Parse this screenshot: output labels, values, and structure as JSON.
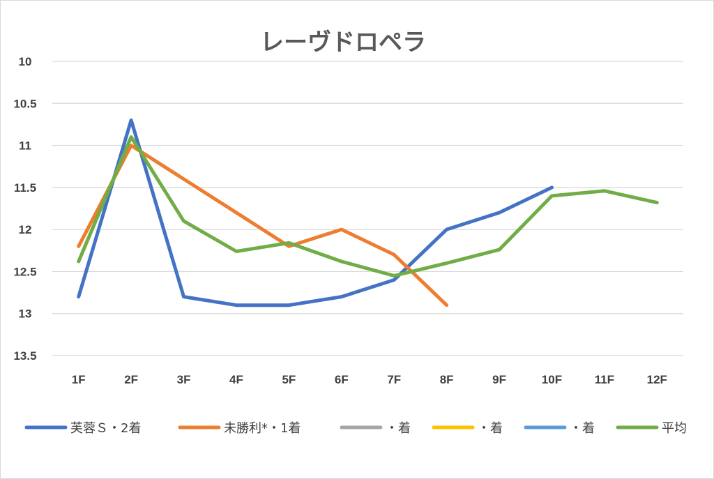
{
  "chart_data": {
    "type": "line",
    "title": "レーヴドロペラ",
    "categories": [
      "1F",
      "2F",
      "3F",
      "4F",
      "5F",
      "6F",
      "7F",
      "8F",
      "9F",
      "10F",
      "11F",
      "12F"
    ],
    "y_ticks": [
      "10",
      "10.5",
      "11",
      "11.5",
      "12",
      "12.5",
      "13",
      "13.5"
    ],
    "ylim": [
      10,
      13.5
    ],
    "y_inverted": true,
    "grid": true,
    "legend_position": "bottom",
    "series": [
      {
        "name": "芙蓉Ｓ・2着",
        "color": "#4472c4",
        "values": [
          12.8,
          10.7,
          12.8,
          12.9,
          12.9,
          12.8,
          12.6,
          12.0,
          11.8,
          11.5,
          null,
          null
        ]
      },
      {
        "name": "未勝利*・1着",
        "color": "#ed7d31",
        "values": [
          12.2,
          11.0,
          11.4,
          11.8,
          12.2,
          12.0,
          12.3,
          12.9,
          null,
          null,
          null,
          null
        ]
      },
      {
        "name": "・着",
        "color": "#a5a5a5",
        "values": [
          null,
          null,
          null,
          null,
          null,
          null,
          null,
          null,
          null,
          null,
          null,
          null
        ]
      },
      {
        "name": "・着",
        "color": "#ffc000",
        "values": [
          null,
          null,
          null,
          null,
          null,
          null,
          null,
          null,
          null,
          null,
          null,
          null
        ]
      },
      {
        "name": "・着",
        "color": "#5b9bd5",
        "values": [
          null,
          null,
          null,
          null,
          null,
          null,
          null,
          null,
          null,
          null,
          null,
          null
        ]
      },
      {
        "name": "平均",
        "color": "#70ad47",
        "values": [
          12.38,
          10.9,
          11.9,
          12.26,
          12.16,
          12.38,
          12.55,
          12.4,
          12.24,
          11.6,
          11.54,
          11.68
        ]
      }
    ]
  }
}
